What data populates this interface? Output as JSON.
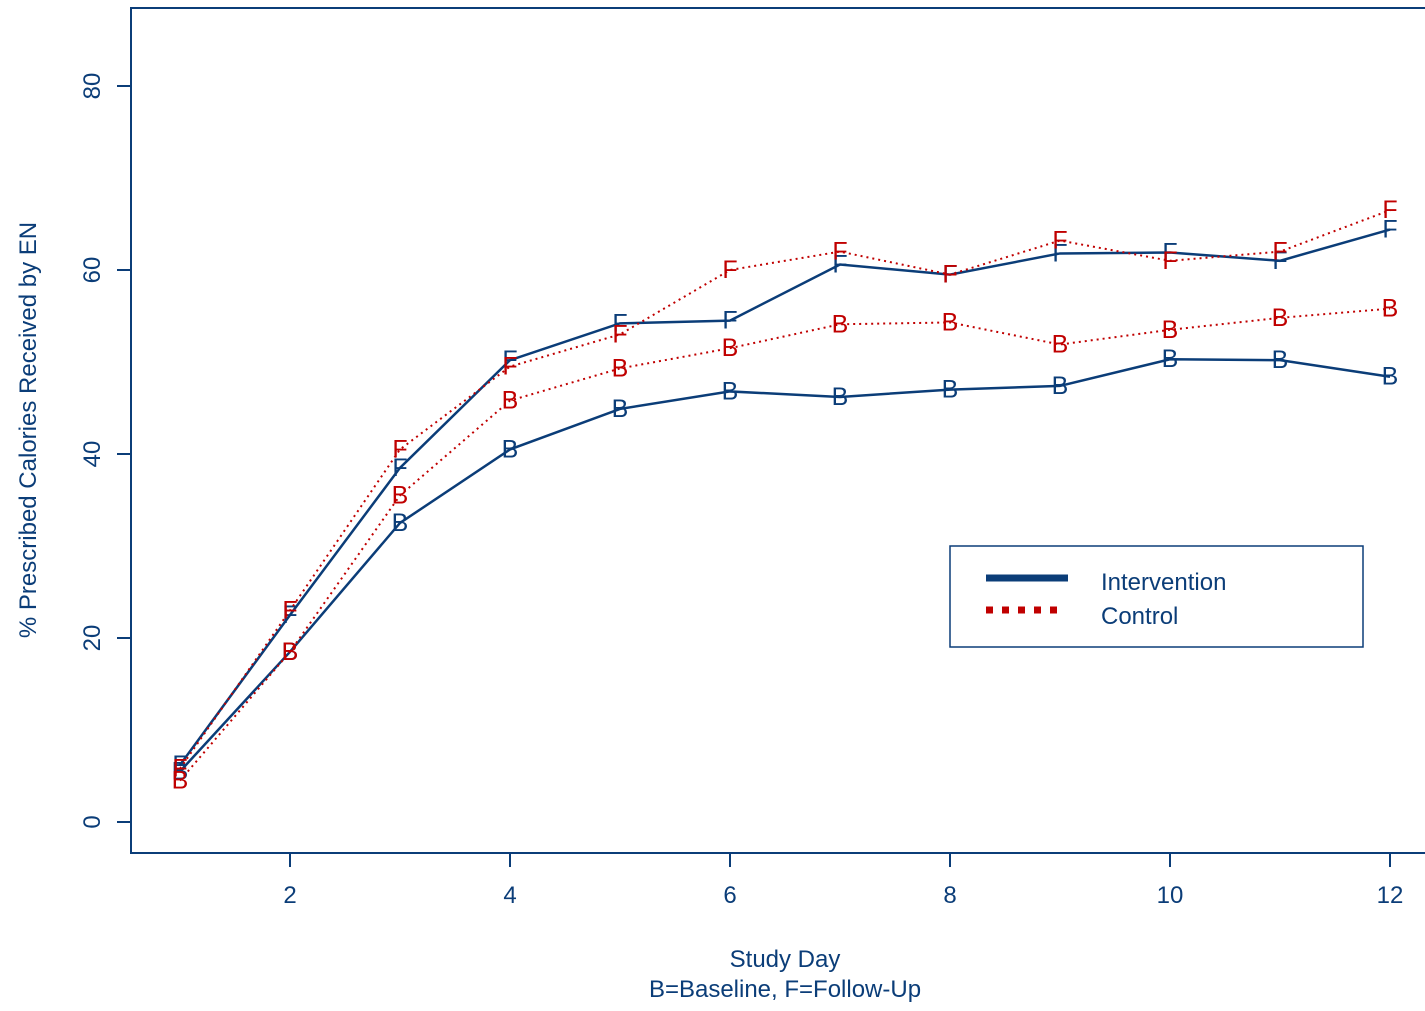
{
  "chart_data": {
    "type": "line",
    "xlabel": "Study Day",
    "xlabel2": "B=Baseline, F=Follow-Up",
    "ylabel": "% Prescribed Calories Received by EN",
    "xlim": [
      1,
      12
    ],
    "ylim": [
      0,
      85
    ],
    "xticks": [
      2,
      4,
      6,
      8,
      10,
      12
    ],
    "yticks": [
      0,
      20,
      40,
      60,
      80
    ],
    "grid": false,
    "legend_position": "right-center",
    "legend": [
      {
        "label": "Intervention",
        "color": "#0b3d78",
        "style": "solid"
      },
      {
        "label": "Control",
        "color": "#c00000",
        "style": "dotted"
      }
    ],
    "x": [
      1,
      2,
      3,
      4,
      5,
      6,
      7,
      8,
      9,
      10,
      11,
      12
    ],
    "series": [
      {
        "group": "Intervention",
        "marker": "F",
        "color": "#0b3d78",
        "style": "solid",
        "values": [
          6.2,
          22.5,
          38.5,
          50.2,
          54.2,
          54.5,
          60.6,
          59.5,
          61.8,
          61.9,
          61.0,
          64.4
        ]
      },
      {
        "group": "Intervention",
        "marker": "B",
        "color": "#0b3d78",
        "style": "solid",
        "values": [
          5.5,
          18.5,
          32.5,
          40.5,
          44.9,
          46.8,
          46.2,
          47.0,
          47.4,
          50.3,
          50.2,
          48.4
        ]
      },
      {
        "group": "Control",
        "marker": "F",
        "color": "#c00000",
        "style": "dotted",
        "values": [
          5.8,
          23.0,
          40.5,
          49.5,
          53.0,
          60.0,
          62.0,
          59.5,
          63.2,
          61.0,
          62.0,
          66.5
        ]
      },
      {
        "group": "Control",
        "marker": "B",
        "color": "#c00000",
        "style": "dotted",
        "values": [
          4.5,
          18.5,
          35.5,
          45.8,
          49.3,
          51.5,
          54.1,
          54.3,
          51.9,
          53.5,
          54.8,
          55.8
        ]
      }
    ]
  }
}
